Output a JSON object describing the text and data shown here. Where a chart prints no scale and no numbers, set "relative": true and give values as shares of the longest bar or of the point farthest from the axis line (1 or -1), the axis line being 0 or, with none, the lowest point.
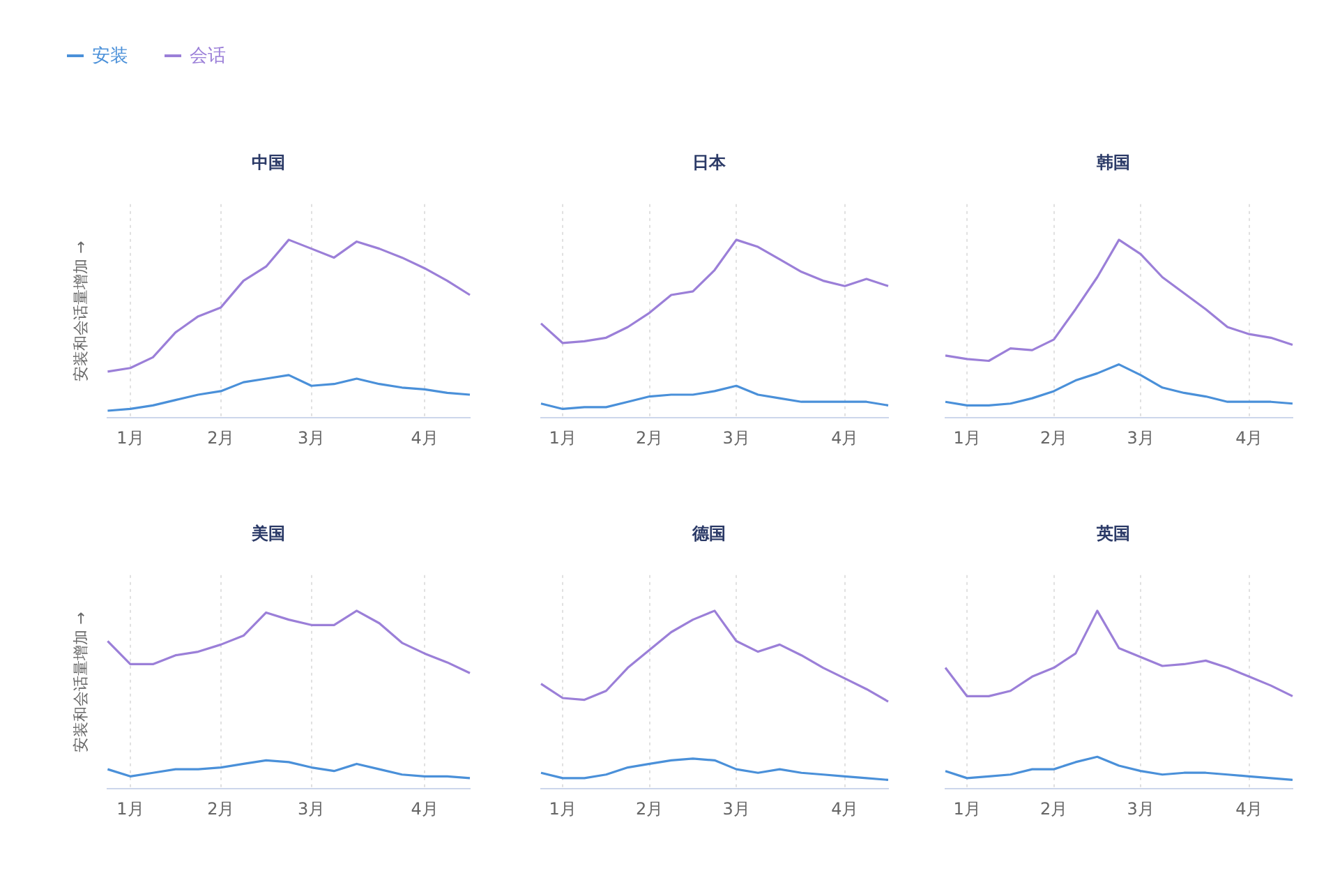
{
  "chart_data": [
    {
      "type": "line",
      "title": "中国",
      "ylabel": "安装和会话量增加 →",
      "relative": true,
      "legend": "top left",
      "grid": "x",
      "categories": [
        null,
        "1月",
        null,
        null,
        null,
        "2月",
        null,
        null,
        null,
        "3月",
        null,
        null,
        null,
        null,
        "4月",
        null,
        null
      ],
      "series": [
        {
          "name": "安装",
          "color": "#4a90d9",
          "values": [
            0.04,
            0.05,
            0.07,
            0.1,
            0.13,
            0.15,
            0.2,
            0.22,
            0.24,
            0.18,
            0.19,
            0.22,
            0.19,
            0.17,
            0.16,
            0.14,
            0.13
          ]
        },
        {
          "name": "会话",
          "color": "#9b7fd8",
          "values": [
            0.26,
            0.28,
            0.34,
            0.48,
            0.57,
            0.62,
            0.77,
            0.85,
            1.0,
            0.95,
            0.9,
            0.99,
            0.95,
            0.9,
            0.84,
            0.77,
            0.69
          ]
        }
      ]
    },
    {
      "type": "line",
      "title": "日本",
      "relative": true,
      "grid": "x",
      "categories": [
        null,
        "1月",
        null,
        null,
        null,
        "2月",
        null,
        null,
        null,
        "3月",
        null,
        null,
        null,
        null,
        "4月",
        null,
        null
      ],
      "series": [
        {
          "color": "#4a90d9",
          "values": [
            0.08,
            0.05,
            0.06,
            0.06,
            0.09,
            0.12,
            0.13,
            0.13,
            0.15,
            0.18,
            0.13,
            0.11,
            0.09,
            0.09,
            0.09,
            0.09,
            0.07
          ]
        },
        {
          "color": "#9b7fd8",
          "values": [
            0.53,
            0.42,
            0.43,
            0.45,
            0.51,
            0.59,
            0.69,
            0.71,
            0.83,
            1.0,
            0.96,
            0.89,
            0.82,
            0.77,
            0.74,
            0.78,
            0.74
          ]
        }
      ]
    },
    {
      "type": "line",
      "title": "韩国",
      "relative": true,
      "grid": "x",
      "categories": [
        null,
        "1月",
        null,
        null,
        null,
        "2月",
        null,
        null,
        null,
        "3月",
        null,
        null,
        null,
        null,
        "4月",
        null,
        null
      ],
      "series": [
        {
          "color": "#4a90d9",
          "values": [
            0.09,
            0.07,
            0.07,
            0.08,
            0.11,
            0.15,
            0.21,
            0.25,
            0.3,
            0.24,
            0.17,
            0.14,
            0.12,
            0.09,
            0.09,
            0.09,
            0.08
          ]
        },
        {
          "color": "#9b7fd8",
          "values": [
            0.35,
            0.33,
            0.32,
            0.39,
            0.38,
            0.44,
            0.61,
            0.79,
            1.0,
            0.92,
            0.79,
            0.7,
            0.61,
            0.51,
            0.47,
            0.45,
            0.41
          ]
        }
      ]
    },
    {
      "type": "line",
      "title": "美国",
      "ylabel": "安装和会话量增加 →",
      "relative": true,
      "grid": "x",
      "categories": [
        null,
        "1月",
        null,
        null,
        null,
        "2月",
        null,
        null,
        null,
        "3月",
        null,
        null,
        null,
        null,
        "4月",
        null,
        null
      ],
      "series": [
        {
          "color": "#4a90d9",
          "values": [
            0.11,
            0.07,
            0.09,
            0.11,
            0.11,
            0.12,
            0.14,
            0.16,
            0.15,
            0.12,
            0.1,
            0.14,
            0.11,
            0.08,
            0.07,
            0.07,
            0.06
          ]
        },
        {
          "color": "#9b7fd8",
          "values": [
            0.83,
            0.7,
            0.7,
            0.75,
            0.77,
            0.81,
            0.86,
            0.99,
            0.95,
            0.92,
            0.92,
            1.0,
            0.93,
            0.82,
            0.76,
            0.71,
            0.65
          ]
        }
      ]
    },
    {
      "type": "line",
      "title": "德国",
      "relative": true,
      "grid": "x",
      "categories": [
        null,
        "1月",
        null,
        null,
        null,
        "2月",
        null,
        null,
        null,
        "3月",
        null,
        null,
        null,
        null,
        "4月",
        null,
        null
      ],
      "series": [
        {
          "color": "#4a90d9",
          "values": [
            0.09,
            0.06,
            0.06,
            0.08,
            0.12,
            0.14,
            0.16,
            0.17,
            0.16,
            0.11,
            0.09,
            0.11,
            0.09,
            0.08,
            0.07,
            0.06,
            0.05
          ]
        },
        {
          "color": "#9b7fd8",
          "values": [
            0.59,
            0.51,
            0.5,
            0.55,
            0.68,
            0.78,
            0.88,
            0.95,
            1.0,
            0.83,
            0.77,
            0.81,
            0.75,
            0.68,
            0.62,
            0.56,
            0.49
          ]
        }
      ]
    },
    {
      "type": "line",
      "title": "英国",
      "relative": true,
      "grid": "x",
      "categories": [
        null,
        "1月",
        null,
        null,
        null,
        "2月",
        null,
        null,
        null,
        "3月",
        null,
        null,
        null,
        null,
        "4月",
        null,
        null
      ],
      "series": [
        {
          "color": "#4a90d9",
          "values": [
            0.1,
            0.06,
            0.07,
            0.08,
            0.11,
            0.11,
            0.15,
            0.18,
            0.13,
            0.1,
            0.08,
            0.09,
            0.09,
            0.08,
            0.07,
            0.06,
            0.05
          ]
        },
        {
          "color": "#9b7fd8",
          "values": [
            0.68,
            0.52,
            0.52,
            0.55,
            0.63,
            0.68,
            0.76,
            1.0,
            0.79,
            0.74,
            0.69,
            0.7,
            0.72,
            0.68,
            0.63,
            0.58,
            0.52
          ]
        }
      ]
    }
  ]
}
